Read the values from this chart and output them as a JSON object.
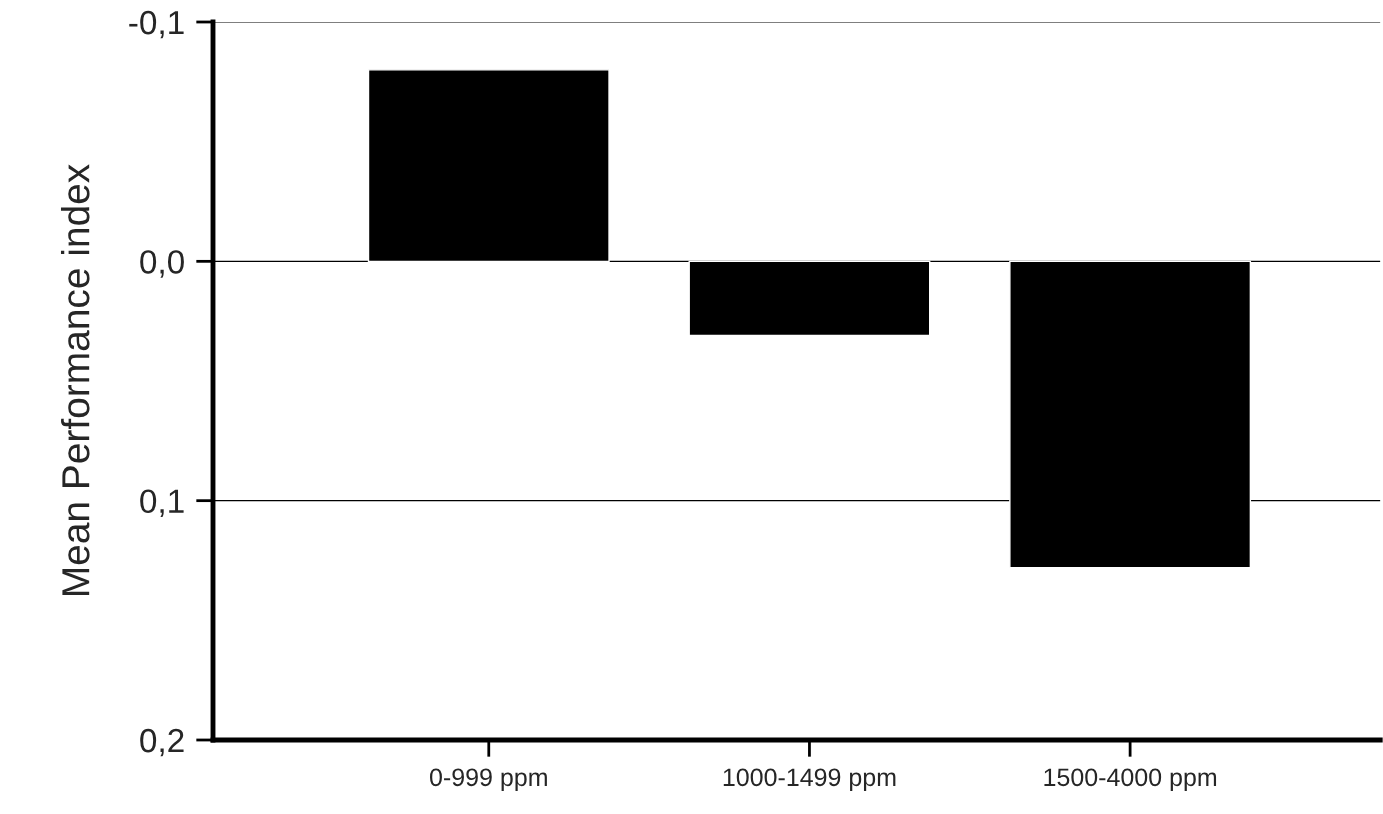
{
  "chart_data": {
    "type": "bar",
    "ylabel": "Mean Performance index",
    "categories": [
      "0-999 ppm",
      "1000-1499 ppm",
      "1500-4000 ppm"
    ],
    "values": [
      -0.08,
      0.031,
      0.128
    ],
    "color": "#000000",
    "ylim": [
      0.2,
      -0.1
    ],
    "yticks": [
      {
        "value": -0.1,
        "label": "-0,1"
      },
      {
        "value": 0.0,
        "label": "0,0"
      },
      {
        "value": 0.1,
        "label": "0,1"
      },
      {
        "value": 0.2,
        "label": "0,2"
      }
    ],
    "grid": "y"
  }
}
